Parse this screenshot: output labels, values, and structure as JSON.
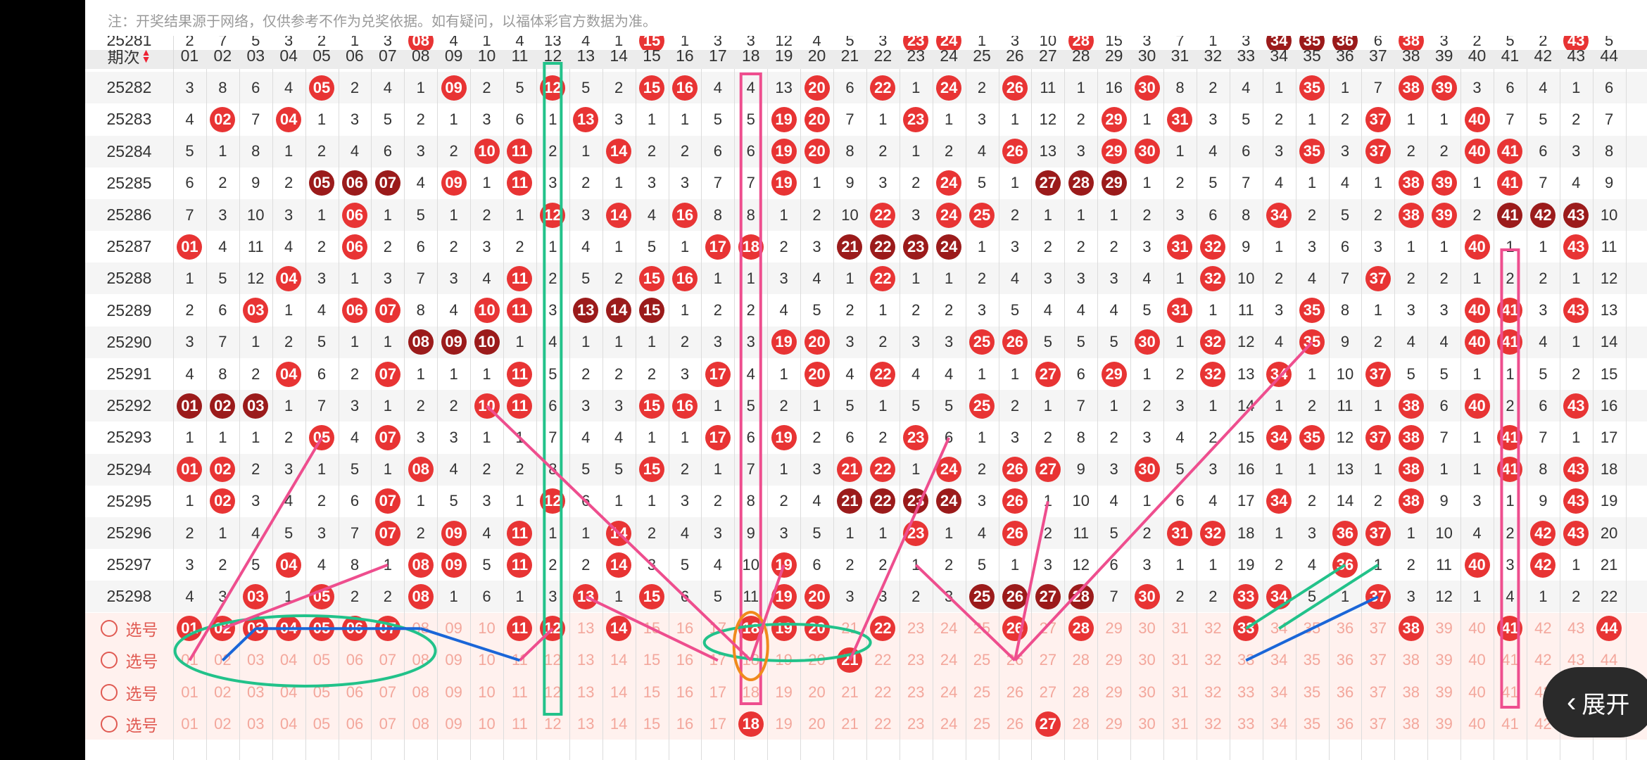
{
  "notice": "注：开奖结果源于网络，仅供参考不作为兑奖依据。如有疑问，以福体彩官方数据为准。",
  "header": {
    "period_label": "期次",
    "numbers": [
      "01",
      "02",
      "03",
      "04",
      "05",
      "06",
      "07",
      "08",
      "09",
      "10",
      "11",
      "12",
      "13",
      "14",
      "15",
      "16",
      "17",
      "18",
      "19",
      "20",
      "21",
      "22",
      "23",
      "24",
      "25",
      "26",
      "27",
      "28",
      "29",
      "30",
      "31",
      "32",
      "33",
      "34",
      "35",
      "36",
      "37",
      "38",
      "39",
      "40",
      "41",
      "42",
      "43",
      "44"
    ]
  },
  "rows": [
    {
      "period": "25281",
      "cells": [
        "2",
        "7",
        "5",
        "3",
        "2",
        "1",
        "3",
        "08",
        "4",
        "1",
        "4",
        "13",
        "4",
        "1",
        "15",
        "1",
        "3",
        "3",
        "12",
        "4",
        "5",
        "3",
        "23",
        "24",
        "1",
        "3",
        "10",
        "28",
        "15",
        "3",
        "7",
        "1",
        "3",
        "34",
        "35",
        "36",
        "6",
        "38",
        "3",
        "2",
        "5",
        "2",
        "43",
        "5"
      ],
      "dark": [
        "34",
        "35",
        "36"
      ]
    },
    {
      "period": "25282",
      "cells": [
        "3",
        "8",
        "6",
        "4",
        "05",
        "2",
        "4",
        "1",
        "09",
        "2",
        "5",
        "12",
        "5",
        "2",
        "15",
        "16",
        "4",
        "4",
        "13",
        "20",
        "6",
        "22",
        "1",
        "24",
        "2",
        "26",
        "11",
        "1",
        "16",
        "30",
        "8",
        "2",
        "4",
        "1",
        "35",
        "1",
        "7",
        "38",
        "39",
        "3",
        "6",
        "4",
        "1",
        "6"
      ],
      "dark": []
    },
    {
      "period": "25283",
      "cells": [
        "4",
        "02",
        "7",
        "04",
        "1",
        "3",
        "5",
        "2",
        "1",
        "3",
        "6",
        "1",
        "13",
        "3",
        "1",
        "1",
        "5",
        "5",
        "19",
        "20",
        "7",
        "1",
        "23",
        "1",
        "3",
        "1",
        "12",
        "2",
        "29",
        "1",
        "31",
        "3",
        "5",
        "2",
        "1",
        "2",
        "37",
        "1",
        "1",
        "40",
        "7",
        "5",
        "2",
        "7"
      ],
      "dark": []
    },
    {
      "period": "25284",
      "cells": [
        "5",
        "1",
        "8",
        "1",
        "2",
        "4",
        "6",
        "3",
        "2",
        "10",
        "11",
        "2",
        "1",
        "14",
        "2",
        "2",
        "6",
        "6",
        "19",
        "20",
        "8",
        "2",
        "1",
        "2",
        "4",
        "26",
        "13",
        "3",
        "29",
        "30",
        "1",
        "4",
        "6",
        "3",
        "35",
        "3",
        "37",
        "2",
        "2",
        "40",
        "41",
        "6",
        "3",
        "8"
      ],
      "dark": []
    },
    {
      "period": "25285",
      "cells": [
        "6",
        "2",
        "9",
        "2",
        "05",
        "06",
        "07",
        "4",
        "09",
        "1",
        "11",
        "3",
        "2",
        "1",
        "3",
        "3",
        "7",
        "7",
        "19",
        "1",
        "9",
        "3",
        "2",
        "24",
        "5",
        "1",
        "27",
        "28",
        "29",
        "1",
        "2",
        "5",
        "7",
        "4",
        "1",
        "4",
        "1",
        "38",
        "39",
        "1",
        "41",
        "7",
        "4",
        "9"
      ],
      "dark": [
        "05",
        "06",
        "07",
        "27",
        "28",
        "29"
      ]
    },
    {
      "period": "25286",
      "cells": [
        "7",
        "3",
        "10",
        "3",
        "1",
        "06",
        "1",
        "5",
        "1",
        "2",
        "1",
        "12",
        "3",
        "14",
        "4",
        "16",
        "8",
        "8",
        "1",
        "2",
        "10",
        "22",
        "3",
        "24",
        "25",
        "2",
        "1",
        "1",
        "1",
        "2",
        "3",
        "6",
        "8",
        "34",
        "2",
        "5",
        "2",
        "38",
        "39",
        "2",
        "41",
        "42",
        "43",
        "10"
      ],
      "dark": [
        "41",
        "42",
        "43"
      ]
    },
    {
      "period": "25287",
      "cells": [
        "01",
        "4",
        "11",
        "4",
        "2",
        "06",
        "2",
        "6",
        "2",
        "3",
        "2",
        "1",
        "4",
        "1",
        "5",
        "1",
        "17",
        "18",
        "2",
        "3",
        "21",
        "22",
        "23",
        "24",
        "1",
        "3",
        "2",
        "2",
        "2",
        "3",
        "31",
        "32",
        "9",
        "1",
        "3",
        "6",
        "3",
        "1",
        "1",
        "40",
        "1",
        "1",
        "43",
        "11"
      ],
      "dark": [
        "21",
        "22",
        "23",
        "24"
      ]
    },
    {
      "period": "25288",
      "cells": [
        "1",
        "5",
        "12",
        "04",
        "3",
        "1",
        "3",
        "7",
        "3",
        "4",
        "11",
        "2",
        "5",
        "2",
        "15",
        "16",
        "1",
        "1",
        "3",
        "4",
        "1",
        "22",
        "1",
        "1",
        "2",
        "4",
        "3",
        "3",
        "3",
        "4",
        "1",
        "32",
        "10",
        "2",
        "4",
        "7",
        "37",
        "2",
        "2",
        "1",
        "2",
        "2",
        "1",
        "12"
      ],
      "dark": []
    },
    {
      "period": "25289",
      "cells": [
        "2",
        "6",
        "03",
        "1",
        "4",
        "06",
        "07",
        "8",
        "4",
        "10",
        "11",
        "3",
        "13",
        "14",
        "15",
        "1",
        "2",
        "2",
        "4",
        "5",
        "2",
        "1",
        "2",
        "2",
        "3",
        "5",
        "4",
        "4",
        "4",
        "5",
        "31",
        "1",
        "11",
        "3",
        "35",
        "8",
        "1",
        "3",
        "3",
        "40",
        "41",
        "3",
        "43",
        "13"
      ],
      "dark": [
        "13",
        "14",
        "15"
      ]
    },
    {
      "period": "25290",
      "cells": [
        "3",
        "7",
        "1",
        "2",
        "5",
        "1",
        "1",
        "08",
        "09",
        "10",
        "1",
        "4",
        "1",
        "1",
        "1",
        "2",
        "3",
        "3",
        "19",
        "20",
        "3",
        "2",
        "3",
        "3",
        "25",
        "26",
        "5",
        "5",
        "5",
        "30",
        "1",
        "32",
        "12",
        "4",
        "35",
        "9",
        "2",
        "4",
        "4",
        "40",
        "41",
        "4",
        "1",
        "14"
      ],
      "dark": [
        "08",
        "09",
        "10"
      ]
    },
    {
      "period": "25291",
      "cells": [
        "4",
        "8",
        "2",
        "04",
        "6",
        "2",
        "07",
        "1",
        "1",
        "1",
        "11",
        "5",
        "2",
        "2",
        "2",
        "3",
        "17",
        "4",
        "1",
        "20",
        "4",
        "22",
        "4",
        "4",
        "1",
        "1",
        "27",
        "6",
        "29",
        "1",
        "2",
        "32",
        "13",
        "34",
        "1",
        "10",
        "37",
        "5",
        "5",
        "1",
        "1",
        "5",
        "2",
        "15"
      ],
      "dark": []
    },
    {
      "period": "25292",
      "cells": [
        "01",
        "02",
        "03",
        "1",
        "7",
        "3",
        "1",
        "2",
        "2",
        "10",
        "11",
        "6",
        "3",
        "3",
        "15",
        "16",
        "1",
        "5",
        "2",
        "1",
        "5",
        "1",
        "5",
        "5",
        "25",
        "2",
        "1",
        "7",
        "1",
        "2",
        "3",
        "1",
        "14",
        "1",
        "2",
        "11",
        "1",
        "38",
        "6",
        "40",
        "2",
        "6",
        "43",
        "16"
      ],
      "dark": [
        "01",
        "02",
        "03"
      ]
    },
    {
      "period": "25293",
      "cells": [
        "1",
        "1",
        "1",
        "2",
        "05",
        "4",
        "07",
        "3",
        "3",
        "1",
        "1",
        "7",
        "4",
        "4",
        "1",
        "1",
        "17",
        "6",
        "19",
        "2",
        "6",
        "2",
        "23",
        "6",
        "1",
        "3",
        "2",
        "8",
        "2",
        "3",
        "4",
        "2",
        "15",
        "34",
        "35",
        "12",
        "37",
        "38",
        "7",
        "1",
        "41",
        "7",
        "1",
        "17"
      ],
      "dark": []
    },
    {
      "period": "25294",
      "cells": [
        "01",
        "02",
        "2",
        "3",
        "1",
        "5",
        "1",
        "08",
        "4",
        "2",
        "2",
        "8",
        "5",
        "5",
        "15",
        "2",
        "1",
        "7",
        "1",
        "3",
        "21",
        "22",
        "1",
        "24",
        "2",
        "26",
        "27",
        "9",
        "3",
        "30",
        "5",
        "3",
        "16",
        "1",
        "1",
        "13",
        "1",
        "38",
        "1",
        "1",
        "41",
        "8",
        "43",
        "18"
      ],
      "dark": []
    },
    {
      "period": "25295",
      "cells": [
        "1",
        "02",
        "3",
        "4",
        "2",
        "6",
        "07",
        "1",
        "5",
        "3",
        "1",
        "12",
        "6",
        "1",
        "1",
        "3",
        "2",
        "8",
        "2",
        "4",
        "21",
        "22",
        "23",
        "24",
        "3",
        "26",
        "1",
        "10",
        "4",
        "1",
        "6",
        "4",
        "17",
        "34",
        "2",
        "14",
        "2",
        "38",
        "9",
        "3",
        "1",
        "9",
        "43",
        "19"
      ],
      "dark": [
        "21",
        "22",
        "23",
        "24"
      ]
    },
    {
      "period": "25296",
      "cells": [
        "2",
        "1",
        "4",
        "5",
        "3",
        "7",
        "07",
        "2",
        "09",
        "4",
        "11",
        "1",
        "1",
        "14",
        "2",
        "4",
        "3",
        "9",
        "3",
        "5",
        "1",
        "1",
        "23",
        "1",
        "4",
        "26",
        "2",
        "11",
        "5",
        "2",
        "31",
        "32",
        "18",
        "1",
        "3",
        "36",
        "37",
        "1",
        "10",
        "4",
        "2",
        "42",
        "43",
        "20"
      ],
      "dark": []
    },
    {
      "period": "25297",
      "cells": [
        "3",
        "2",
        "5",
        "04",
        "4",
        "8",
        "1",
        "08",
        "09",
        "5",
        "11",
        "2",
        "2",
        "14",
        "3",
        "5",
        "4",
        "10",
        "19",
        "6",
        "2",
        "2",
        "1",
        "2",
        "5",
        "1",
        "3",
        "12",
        "6",
        "3",
        "1",
        "1",
        "19",
        "2",
        "4",
        "36",
        "1",
        "2",
        "11",
        "40",
        "3",
        "42",
        "1",
        "21"
      ],
      "dark": []
    },
    {
      "period": "25298",
      "cells": [
        "4",
        "3",
        "03",
        "1",
        "05",
        "2",
        "2",
        "08",
        "1",
        "6",
        "1",
        "3",
        "13",
        "1",
        "15",
        "6",
        "5",
        "11",
        "19",
        "20",
        "3",
        "3",
        "2",
        "3",
        "25",
        "26",
        "27",
        "28",
        "7",
        "30",
        "2",
        "2",
        "33",
        "34",
        "5",
        "1",
        "37",
        "3",
        "12",
        "1",
        "4",
        "1",
        "2",
        "22"
      ],
      "dark": [
        "25",
        "26",
        "27",
        "28"
      ]
    }
  ],
  "pickers": {
    "label": "选号",
    "rows": [
      {
        "selected": [
          "01",
          "02",
          "03",
          "04",
          "05",
          "06",
          "07",
          "11",
          "12",
          "14",
          "18",
          "19",
          "20",
          "22",
          "26",
          "28",
          "33",
          "38",
          "41",
          "44"
        ]
      },
      {
        "selected": [
          "21"
        ]
      },
      {
        "selected": []
      },
      {
        "selected": [
          "18",
          "27"
        ]
      }
    ]
  },
  "expand_button": {
    "label": "展开"
  },
  "colors": {
    "ball_red": "#e83434",
    "ball_dark": "#9b1b1b",
    "picker_bg": "#fff1ee",
    "pick_text": "#f3a79c"
  }
}
